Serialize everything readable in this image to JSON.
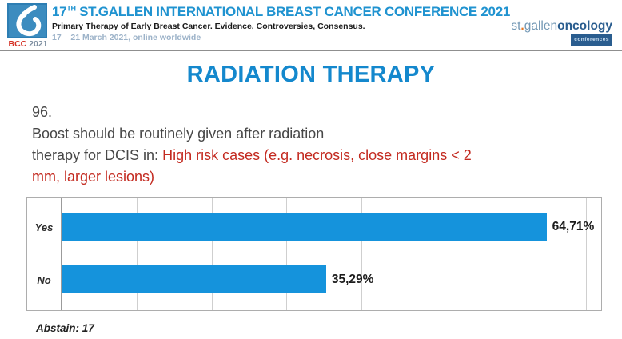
{
  "header": {
    "logo": {
      "bcc": "BCC",
      "year": "2021"
    },
    "title_prefix": "17",
    "title_superscript": "TH",
    "title_rest": " ST.GALLEN INTERNATIONAL BREAST CANCER CONFERENCE 2021",
    "subtitle": "Primary Therapy of Early Breast Cancer. Evidence, Controversies, Consensus.",
    "dates": "17 – 21 March 2021, online worldwide",
    "brand": {
      "part1": "st",
      "dot": ".",
      "part2": "gallen",
      "part3": "oncology",
      "badge": "conferences"
    }
  },
  "slide": {
    "title": "RADIATION THERAPY",
    "question_number": "96.",
    "question_line1": "Boost should be routinely given after radiation",
    "question_lead": "therapy for DCIS in: ",
    "question_red_line1": "High risk cases (e.g. necrosis, close margins < 2",
    "question_red_line2": "mm, larger lesions)",
    "abstain": "Abstain: 17"
  },
  "chart_data": {
    "type": "bar",
    "orientation": "horizontal",
    "title": "",
    "categories": [
      "Yes",
      "No"
    ],
    "values": [
      64.71,
      35.29
    ],
    "value_labels": [
      "64,71%",
      "35,29%"
    ],
    "axis_max": 72,
    "gridline_step": 10,
    "grid": true,
    "legend": false,
    "bar_color": "#1593dc",
    "abstain_count": 17
  },
  "colors": {
    "title_blue": "#1488cd",
    "header_blue": "#2093d0",
    "highlight_red": "#c32a20",
    "bar_blue": "#1593dc",
    "bcc_red": "#d42f23",
    "brand_dark_blue": "#2a5d8f",
    "brand_light_blue": "#7398b5",
    "brand_orange": "#e87722"
  }
}
